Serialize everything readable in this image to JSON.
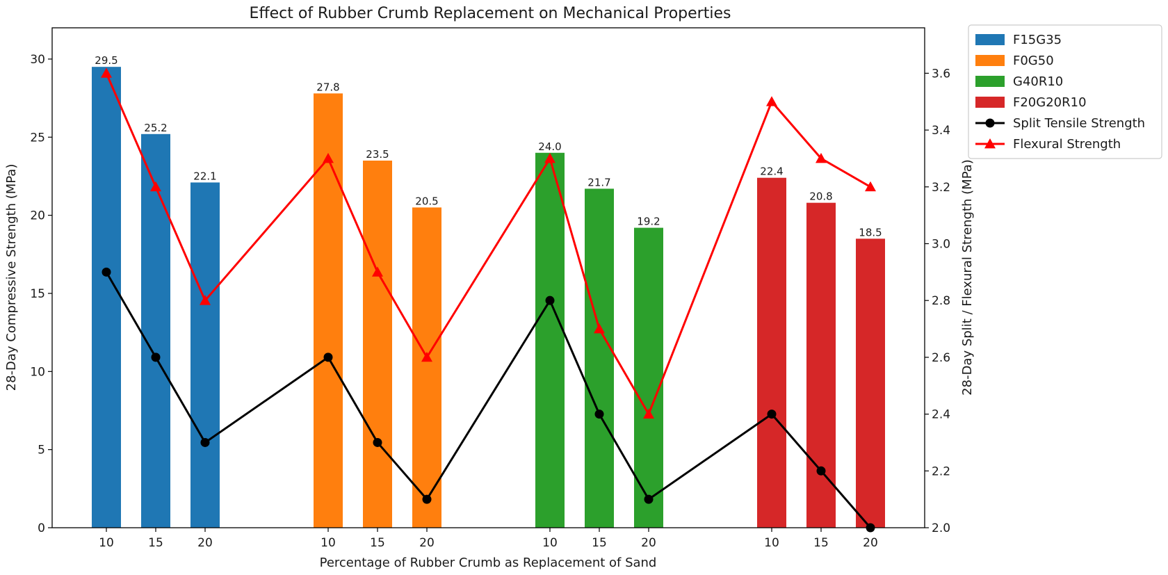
{
  "chart_data": {
    "type": "bar",
    "title": "Effect of Rubber Crumb Replacement on Mechanical Properties",
    "xlabel": "Percentage of Rubber Crumb as Replacement of Sand",
    "ylabel": "28-Day Compressive Strength (MPa)",
    "ylabel_right": "28-Day Split / Flexural Strength (MPa)",
    "ylim": [
      0,
      32
    ],
    "ylim_right": [
      2.0,
      3.76
    ],
    "yticks": [
      0,
      5,
      10,
      15,
      20,
      25,
      30
    ],
    "yticks_right": [
      2.0,
      2.2,
      2.4,
      2.6,
      2.8,
      3.0,
      3.2,
      3.4,
      3.6
    ],
    "legend_position": "upper right outside",
    "grid": false,
    "groups": [
      {
        "name": "F15G35",
        "color": "#1f77b4",
        "categories": [
          "10",
          "15",
          "20"
        ],
        "values": [
          29.5,
          25.2,
          22.1
        ]
      },
      {
        "name": "F0G50",
        "color": "#ff7f0e",
        "categories": [
          "10",
          "15",
          "20"
        ],
        "values": [
          27.8,
          23.5,
          20.5
        ]
      },
      {
        "name": "G40R10",
        "color": "#2ca02c",
        "categories": [
          "10",
          "15",
          "20"
        ],
        "values": [
          24.0,
          21.7,
          19.2
        ]
      },
      {
        "name": "F20G20R10",
        "color": "#d62728",
        "categories": [
          "10",
          "15",
          "20"
        ],
        "values": [
          22.4,
          20.8,
          18.5
        ]
      }
    ],
    "lines": [
      {
        "name": "Split Tensile Strength",
        "color": "#000000",
        "marker": "circle",
        "axis": "right",
        "values": [
          2.9,
          2.6,
          2.3,
          2.6,
          2.3,
          2.1,
          2.8,
          2.4,
          2.1,
          2.4,
          2.2,
          2.0
        ]
      },
      {
        "name": "Flexural Strength",
        "color": "#ff0000",
        "marker": "triangle",
        "axis": "right",
        "values": [
          3.6,
          3.2,
          2.8,
          3.3,
          2.9,
          2.6,
          3.3,
          2.7,
          2.4,
          3.5,
          3.3,
          3.2
        ]
      }
    ]
  }
}
